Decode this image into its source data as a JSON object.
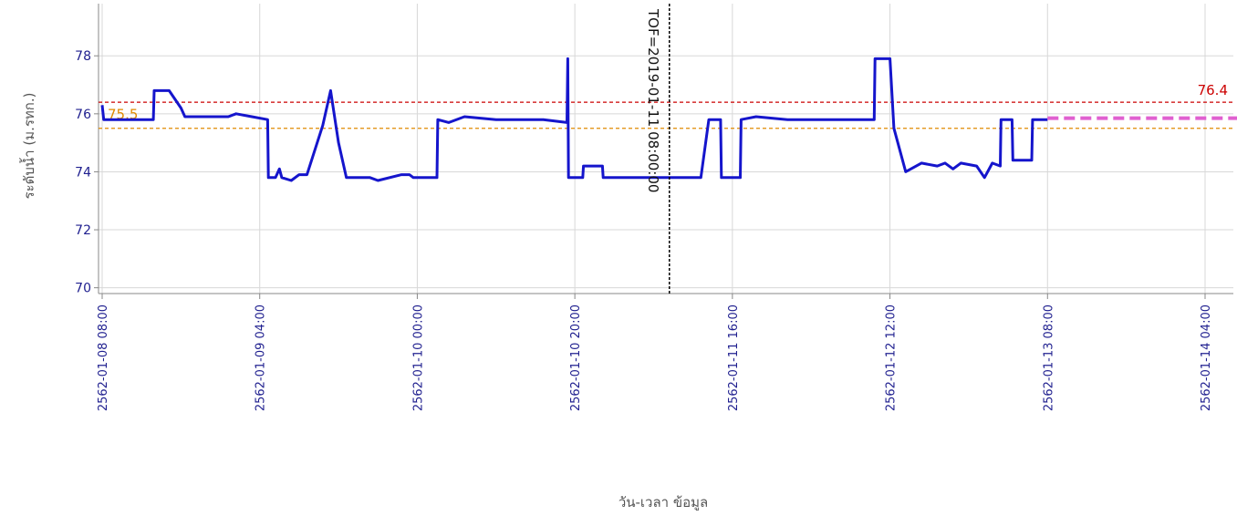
{
  "chart_data": {
    "type": "line",
    "title": "",
    "xlabel": "วัน-เวลา ข้อมูล",
    "ylabel": "ระดับน้ำ (ม.รทก.)",
    "ylim": [
      69.8,
      79.8
    ],
    "yticks": [
      70,
      72,
      74,
      76,
      78
    ],
    "xlim": [
      "2562-01-08 08:00",
      "2562-01-14 04:00"
    ],
    "xticks": [
      "2562-01-08 08:00",
      "2562-01-09 04:00",
      "2562-01-10 00:00",
      "2562-01-10 20:00",
      "2562-01-11 16:00",
      "2562-01-12 12:00",
      "2562-01-13 08:00",
      "2562-01-14 04:00"
    ],
    "grid": true,
    "reference_lines": [
      {
        "label": "76.4",
        "value": 76.4,
        "color": "#cc0000",
        "style": "dashed"
      },
      {
        "label": "75.5",
        "value": 75.5,
        "color": "#e08a00",
        "style": "dashed"
      }
    ],
    "vertical_marker": {
      "label": "TOF=2019-01-11 08:00:00",
      "x": "2562-01-11 08:00",
      "color": "#000000",
      "style": "dashed"
    },
    "series": [
      {
        "color": "#1515cc",
        "style": "solid",
        "points": [
          [
            "2562-01-08 08:00",
            76.3
          ],
          [
            "2562-01-08 08:12",
            75.8
          ],
          [
            "2562-01-08 14:30",
            75.8
          ],
          [
            "2562-01-08 14:36",
            76.8
          ],
          [
            "2562-01-08 16:30",
            76.8
          ],
          [
            "2562-01-08 18:00",
            76.2
          ],
          [
            "2562-01-08 18:30",
            75.9
          ],
          [
            "2562-01-09 00:00",
            75.9
          ],
          [
            "2562-01-09 01:00",
            76.0
          ],
          [
            "2562-01-09 03:00",
            75.9
          ],
          [
            "2562-01-09 05:00",
            75.8
          ],
          [
            "2562-01-09 05:06",
            73.8
          ],
          [
            "2562-01-09 06:00",
            73.8
          ],
          [
            "2562-01-09 06:30",
            74.1
          ],
          [
            "2562-01-09 06:48",
            73.8
          ],
          [
            "2562-01-09 08:00",
            73.7
          ],
          [
            "2562-01-09 09:00",
            73.9
          ],
          [
            "2562-01-09 10:00",
            73.9
          ],
          [
            "2562-01-09 12:00",
            75.6
          ],
          [
            "2562-01-09 13:00",
            76.8
          ],
          [
            "2562-01-09 14:00",
            75.0
          ],
          [
            "2562-01-09 15:00",
            73.8
          ],
          [
            "2562-01-09 18:00",
            73.8
          ],
          [
            "2562-01-09 19:00",
            73.7
          ],
          [
            "2562-01-09 22:00",
            73.9
          ],
          [
            "2562-01-09 23:00",
            73.9
          ],
          [
            "2562-01-09 23:30",
            73.8
          ],
          [
            "2562-01-10 02:30",
            73.8
          ],
          [
            "2562-01-10 02:36",
            75.8
          ],
          [
            "2562-01-10 04:00",
            75.7
          ],
          [
            "2562-01-10 06:00",
            75.9
          ],
          [
            "2562-01-10 10:00",
            75.8
          ],
          [
            "2562-01-10 16:00",
            75.8
          ],
          [
            "2562-01-10 19:00",
            75.7
          ],
          [
            "2562-01-10 19:06",
            77.9
          ],
          [
            "2562-01-10 19:12",
            73.8
          ],
          [
            "2562-01-10 21:00",
            73.8
          ],
          [
            "2562-01-10 21:06",
            74.2
          ],
          [
            "2562-01-10 23:30",
            74.2
          ],
          [
            "2562-01-10 23:36",
            73.8
          ],
          [
            "2562-01-11 02:00",
            73.8
          ],
          [
            "2562-01-11 12:00",
            73.8
          ],
          [
            "2562-01-11 13:00",
            75.8
          ],
          [
            "2562-01-11 14:30",
            75.8
          ],
          [
            "2562-01-11 14:36",
            73.8
          ],
          [
            "2562-01-11 17:00",
            73.8
          ],
          [
            "2562-01-11 17:06",
            75.8
          ],
          [
            "2562-01-11 19:00",
            75.9
          ],
          [
            "2562-01-11 23:00",
            75.8
          ],
          [
            "2562-01-12 04:00",
            75.8
          ],
          [
            "2562-01-12 10:00",
            75.8
          ],
          [
            "2562-01-12 10:06",
            77.9
          ],
          [
            "2562-01-12 12:00",
            77.9
          ],
          [
            "2562-01-12 12:30",
            75.5
          ],
          [
            "2562-01-12 14:00",
            74.0
          ],
          [
            "2562-01-12 16:00",
            74.3
          ],
          [
            "2562-01-12 18:00",
            74.2
          ],
          [
            "2562-01-12 19:00",
            74.3
          ],
          [
            "2562-01-12 20:00",
            74.1
          ],
          [
            "2562-01-12 21:00",
            74.3
          ],
          [
            "2562-01-12 23:00",
            74.2
          ],
          [
            "2562-01-13 00:00",
            73.8
          ],
          [
            "2562-01-13 01:00",
            74.3
          ],
          [
            "2562-01-13 02:00",
            74.2
          ],
          [
            "2562-01-13 02:06",
            75.8
          ],
          [
            "2562-01-13 03:30",
            75.8
          ],
          [
            "2562-01-13 03:36",
            74.4
          ],
          [
            "2562-01-13 06:00",
            74.4
          ],
          [
            "2562-01-13 06:06",
            75.8
          ],
          [
            "2562-01-13 08:00",
            75.8
          ]
        ]
      },
      {
        "color": "#e060d0",
        "style": "dashed",
        "points": [
          [
            "2562-01-13 08:00",
            75.85
          ],
          [
            "2562-01-18 00:00",
            75.85
          ]
        ]
      }
    ]
  }
}
